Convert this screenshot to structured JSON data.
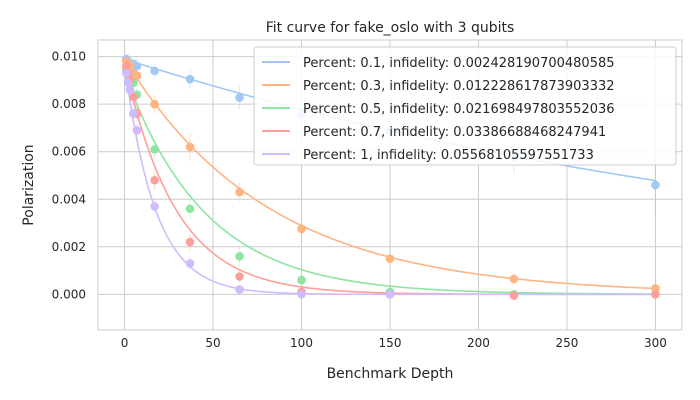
{
  "chart_data": {
    "type": "scatter",
    "title": "Fit curve for fake_oslo with 3 qubits",
    "xlabel": "Benchmark Depth",
    "ylabel": "Polarization",
    "xlim": [
      -15,
      315
    ],
    "ylim": [
      -0.0015,
      0.0107
    ],
    "xticks": [
      0,
      50,
      100,
      150,
      200,
      250,
      300
    ],
    "yticks": [
      0.0,
      0.002,
      0.004,
      0.006,
      0.008,
      0.01
    ],
    "ytick_labels": [
      "0.000",
      "0.002",
      "0.004",
      "0.006",
      "0.008",
      "0.010"
    ],
    "grid": true,
    "legend_position": "top-right",
    "x": [
      1,
      2,
      3,
      5,
      7,
      17,
      37,
      65,
      100,
      150,
      220,
      300
    ],
    "series": [
      {
        "name": "Percent: 0.1, infidelity: 0.002428190700480585",
        "color": "#a1c9f4",
        "fit_a": 0.0099,
        "fit_p": 0.99758,
        "values": [
          0.0099,
          0.0098,
          0.0097,
          0.0097,
          0.0096,
          0.0094,
          0.00905,
          0.00828,
          0.0076,
          0.0069,
          0.0058,
          0.0046
        ],
        "errors": [
          0.0002,
          0.0002,
          0.0002,
          0.0002,
          0.0003,
          0.0003,
          0.0004,
          0.0005,
          0.0006,
          0.0008,
          0.0007,
          0.0013
        ]
      },
      {
        "name": "Percent: 0.3, infidelity: 0.012228617873903332",
        "color": "#ffb482",
        "fit_a": 0.0099,
        "fit_p": 0.98777,
        "values": [
          0.0098,
          0.0097,
          0.0096,
          0.0093,
          0.0092,
          0.008,
          0.0062,
          0.0043,
          0.00275,
          0.0015,
          0.00065,
          0.00025
        ],
        "errors": [
          0.0002,
          0.0002,
          0.0002,
          0.0003,
          0.0003,
          0.0004,
          0.0006,
          0.0004,
          0.0003,
          0.0002,
          0.0002,
          0.0002
        ]
      },
      {
        "name": "Percent: 0.5, infidelity: 0.021698497803552036",
        "color": "#8de5a1",
        "fit_a": 0.0093,
        "fit_p": 0.9783,
        "values": [
          0.0094,
          0.0092,
          0.009,
          0.0089,
          0.0084,
          0.0061,
          0.0036,
          0.0016,
          0.0006,
          0.0001,
          0.0,
          0.0
        ],
        "errors": [
          0.0002,
          0.0002,
          0.0002,
          0.0003,
          0.0003,
          0.0004,
          0.0004,
          0.0004,
          0.0002,
          0.0002,
          0.0001,
          0.0001
        ]
      },
      {
        "name": "Percent: 0.7, infidelity: 0.03386688468247941",
        "color": "#ff9f9b",
        "fit_a": 0.0097,
        "fit_p": 0.96613,
        "values": [
          0.0096,
          0.0093,
          0.009,
          0.0083,
          0.0076,
          0.0048,
          0.0022,
          0.00075,
          0.0001,
          0.0,
          -5e-05,
          0.0
        ],
        "errors": [
          0.0002,
          0.0002,
          0.0003,
          0.0003,
          0.0003,
          0.0004,
          0.0004,
          0.0003,
          0.0002,
          0.0001,
          0.0001,
          0.0001
        ]
      },
      {
        "name": "Percent: 1, infidelity: 0.05568105597551733",
        "color": "#d0bbff",
        "fit_a": 0.0097,
        "fit_p": 0.94432,
        "values": [
          0.0093,
          0.0089,
          0.0086,
          0.0076,
          0.0069,
          0.0037,
          0.0013,
          0.0002,
          0.0,
          0.0,
          null,
          null
        ],
        "errors": [
          0.0002,
          0.0003,
          0.0003,
          0.0003,
          0.0003,
          0.0003,
          0.0003,
          0.0002,
          0.0001,
          0.0001,
          null,
          null
        ]
      }
    ]
  }
}
